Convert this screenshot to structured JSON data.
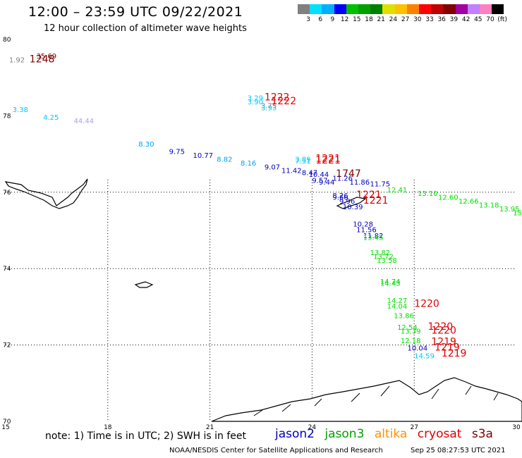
{
  "header": {
    "title": "12:00 – 23:59 UTC 09/22/2021",
    "subtitle": "12 hour collection of altimeter wave heights"
  },
  "color_scale": {
    "labels": [
      "3",
      "6",
      "9",
      "12",
      "15",
      "18",
      "21",
      "24",
      "27",
      "30",
      "33",
      "36",
      "39",
      "42",
      "45",
      "70",
      "(ft)"
    ],
    "colors": [
      "#808080",
      "#00e0ff",
      "#00b0ff",
      "#0000ff",
      "#00c000",
      "#00a000",
      "#008000",
      "#e0e000",
      "#ffc000",
      "#ff8000",
      "#ff0000",
      "#c00000",
      "#800000",
      "#a000a0",
      "#c080ff",
      "#ff80c0",
      "#000000"
    ]
  },
  "chart_data": {
    "type": "map",
    "x_axis": {
      "label": "",
      "ticks": [
        "15",
        "18",
        "21",
        "24",
        "27",
        "30"
      ],
      "range": [
        15,
        30
      ]
    },
    "y_axis": {
      "label": "",
      "ticks": [
        "70",
        "72",
        "74",
        "76",
        "78",
        "80"
      ],
      "range": [
        70,
        80
      ]
    },
    "wave_heights": [
      {
        "lon": 15.1,
        "lat": 79.4,
        "text": "1.92",
        "color": "#808080"
      },
      {
        "lon": 15.9,
        "lat": 79.5,
        "text": "35.69",
        "color": "#800000"
      },
      {
        "lon": 15.7,
        "lat": 79.4,
        "text": "1248",
        "color": "#800000"
      },
      {
        "lon": 22.1,
        "lat": 78.4,
        "text": "3.29",
        "color": "#00c8ff"
      },
      {
        "lon": 22.1,
        "lat": 78.3,
        "text": "3.90",
        "color": "#00c8ff"
      },
      {
        "lon": 22.5,
        "lat": 78.2,
        "text": "3.75",
        "color": "#808080"
      },
      {
        "lon": 22.5,
        "lat": 78.15,
        "text": "3.93",
        "color": "#00c8ff"
      },
      {
        "lon": 22.6,
        "lat": 78.4,
        "text": "1222",
        "color": "#e00000"
      },
      {
        "lon": 22.8,
        "lat": 78.3,
        "text": "1222",
        "color": "#e00000"
      },
      {
        "lon": 15.2,
        "lat": 78.1,
        "text": "3.38",
        "color": "#00c8ff"
      },
      {
        "lon": 16.1,
        "lat": 77.9,
        "text": "4.25",
        "color": "#00c8ff"
      },
      {
        "lon": 17.0,
        "lat": 77.8,
        "text": "44.44",
        "color": "#b0a0e0"
      },
      {
        "lon": 18.9,
        "lat": 77.2,
        "text": "8.30",
        "color": "#00a0ff"
      },
      {
        "lon": 19.8,
        "lat": 77.0,
        "text": "9.75",
        "color": "#0000c0"
      },
      {
        "lon": 20.5,
        "lat": 76.9,
        "text": "10.77",
        "color": "#0000c0"
      },
      {
        "lon": 21.2,
        "lat": 76.8,
        "text": "8.82",
        "color": "#00a0ff"
      },
      {
        "lon": 21.9,
        "lat": 76.7,
        "text": "8.16",
        "color": "#00a0ff"
      },
      {
        "lon": 22.6,
        "lat": 76.6,
        "text": "9.07",
        "color": "#0000c0"
      },
      {
        "lon": 23.5,
        "lat": 76.8,
        "text": "3.89",
        "color": "#00c8ff"
      },
      {
        "lon": 23.5,
        "lat": 76.75,
        "text": "7.31",
        "color": "#00c8ff"
      },
      {
        "lon": 24.1,
        "lat": 76.8,
        "text": "1221",
        "color": "#e00000"
      },
      {
        "lon": 24.1,
        "lat": 76.75,
        "text": "1221",
        "color": "#e00000"
      },
      {
        "lon": 23.1,
        "lat": 76.5,
        "text": "11.42",
        "color": "#0000c0"
      },
      {
        "lon": 23.7,
        "lat": 76.45,
        "text": "8.47",
        "color": "#0000c0"
      },
      {
        "lon": 23.9,
        "lat": 76.4,
        "text": "10.44",
        "color": "#0000c0"
      },
      {
        "lon": 24.7,
        "lat": 76.4,
        "text": "1747",
        "color": "#800000"
      },
      {
        "lon": 24.6,
        "lat": 76.3,
        "text": "11.26",
        "color": "#0000c0"
      },
      {
        "lon": 24.0,
        "lat": 76.25,
        "text": "9.57",
        "color": "#0000c0"
      },
      {
        "lon": 24.2,
        "lat": 76.2,
        "text": "9.44",
        "color": "#0000c0"
      },
      {
        "lon": 25.1,
        "lat": 76.2,
        "text": "11.86",
        "color": "#0000c0"
      },
      {
        "lon": 25.7,
        "lat": 76.15,
        "text": "11.75",
        "color": "#0000c0"
      },
      {
        "lon": 26.2,
        "lat": 76.0,
        "text": "12.41",
        "color": "#00e000"
      },
      {
        "lon": 27.1,
        "lat": 75.9,
        "text": "13.10",
        "color": "#00e000"
      },
      {
        "lon": 27.7,
        "lat": 75.8,
        "text": "12.60",
        "color": "#00e000"
      },
      {
        "lon": 28.3,
        "lat": 75.7,
        "text": "12.66",
        "color": "#00e000"
      },
      {
        "lon": 28.9,
        "lat": 75.6,
        "text": "13.18",
        "color": "#00e000"
      },
      {
        "lon": 29.5,
        "lat": 75.5,
        "text": "13.95",
        "color": "#00e000"
      },
      {
        "lon": 29.9,
        "lat": 75.4,
        "text": "15",
        "color": "#00e000"
      },
      {
        "lon": 24.6,
        "lat": 75.85,
        "text": "8.26",
        "color": "#0000c0"
      },
      {
        "lon": 24.6,
        "lat": 75.8,
        "text": "9.66",
        "color": "#0000c0"
      },
      {
        "lon": 25.3,
        "lat": 75.85,
        "text": "1221",
        "color": "#e00000"
      },
      {
        "lon": 25.5,
        "lat": 75.7,
        "text": "1221",
        "color": "#e00000"
      },
      {
        "lon": 24.8,
        "lat": 75.7,
        "text": "9.96",
        "color": "#0000c0"
      },
      {
        "lon": 24.9,
        "lat": 75.55,
        "text": "10.39",
        "color": "#0000c0"
      },
      {
        "lon": 25.2,
        "lat": 75.1,
        "text": "10.28",
        "color": "#0000c0"
      },
      {
        "lon": 25.3,
        "lat": 74.95,
        "text": "11.56",
        "color": "#0000c0"
      },
      {
        "lon": 25.5,
        "lat": 74.8,
        "text": "11.82",
        "color": "#0000c0"
      },
      {
        "lon": 25.5,
        "lat": 74.75,
        "text": "13.45",
        "color": "#00e000"
      },
      {
        "lon": 25.7,
        "lat": 74.35,
        "text": "13.82",
        "color": "#00e000"
      },
      {
        "lon": 25.8,
        "lat": 74.25,
        "text": "13.72",
        "color": "#00e000"
      },
      {
        "lon": 25.9,
        "lat": 74.15,
        "text": "13.58",
        "color": "#00e000"
      },
      {
        "lon": 26.0,
        "lat": 73.6,
        "text": "14.74",
        "color": "#00e000"
      },
      {
        "lon": 26.0,
        "lat": 73.55,
        "text": "14.43",
        "color": "#00e000"
      },
      {
        "lon": 26.2,
        "lat": 73.1,
        "text": "14.27",
        "color": "#00e000"
      },
      {
        "lon": 26.2,
        "lat": 72.95,
        "text": "14.04",
        "color": "#00e000"
      },
      {
        "lon": 27.0,
        "lat": 73.0,
        "text": "1220",
        "color": "#e00000"
      },
      {
        "lon": 26.4,
        "lat": 72.7,
        "text": "13.86",
        "color": "#00e000"
      },
      {
        "lon": 26.5,
        "lat": 72.4,
        "text": "12.54",
        "color": "#00e000"
      },
      {
        "lon": 26.6,
        "lat": 72.3,
        "text": "13.39",
        "color": "#00e000"
      },
      {
        "lon": 27.4,
        "lat": 72.4,
        "text": "1220",
        "color": "#e00000"
      },
      {
        "lon": 27.5,
        "lat": 72.3,
        "text": "1220",
        "color": "#e00000"
      },
      {
        "lon": 26.6,
        "lat": 72.05,
        "text": "12.18",
        "color": "#00e000"
      },
      {
        "lon": 27.5,
        "lat": 72.0,
        "text": "1219",
        "color": "#e00000"
      },
      {
        "lon": 26.8,
        "lat": 71.85,
        "text": "10.04",
        "color": "#0000c0"
      },
      {
        "lon": 27.6,
        "lat": 71.85,
        "text": "1219",
        "color": "#e00000"
      },
      {
        "lon": 27.0,
        "lat": 71.65,
        "text": "14.59",
        "color": "#00c8ff"
      },
      {
        "lon": 27.8,
        "lat": 71.7,
        "text": "1219",
        "color": "#e00000"
      }
    ]
  },
  "note": "note: 1) Time is in UTC; 2) SWH is in feet",
  "satellites": [
    {
      "name": "jason2",
      "color": "#0000c0"
    },
    {
      "name": "jason3",
      "color": "#00a000"
    },
    {
      "name": "altika",
      "color": "#ff9000"
    },
    {
      "name": "cryosat",
      "color": "#e00000"
    },
    {
      "name": "s3a",
      "color": "#800000"
    }
  ],
  "footer": "NOAA/NESDIS Center for Satellite Applications and Research",
  "timestamp": "Sep 25 08:27:53 UTC 2021"
}
